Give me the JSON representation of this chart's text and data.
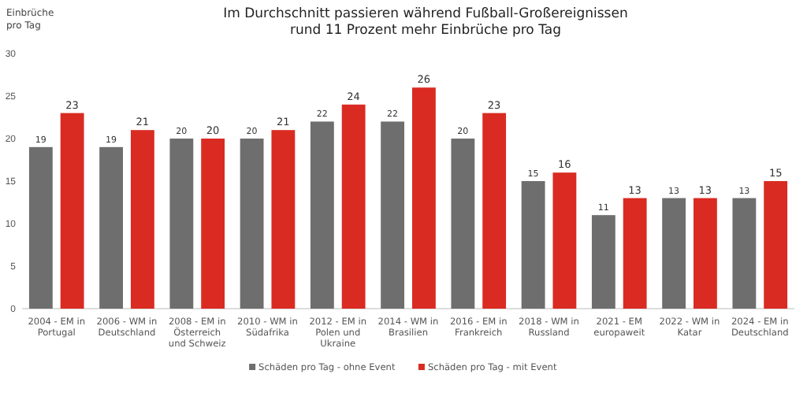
{
  "chart_data": {
    "type": "bar",
    "title": "Im Durchschnitt passieren während Fußball-Großereignissen rund 11 Prozent mehr Einbrüche pro Tag",
    "ylabel": "Einbrüche pro Tag",
    "categories": [
      "2004 - EM in Portugal",
      "2006 - WM in Deutschland",
      "2008 - EM in Österreich und Schweiz",
      "2010 - WM in Südafrika",
      "2012 - EM in Polen und Ukraine",
      "2014 - WM in Brasilien",
      "2016 - EM in Frankreich",
      "2018 - WM in Russland",
      "2021 - EM europaweit",
      "2022 - WM in Katar",
      "2024 - EM in Deutschland"
    ],
    "series": [
      {
        "name": "Schäden pro Tag - ohne Event",
        "color": "#6e6e6e",
        "values": [
          19,
          19,
          20,
          20,
          22,
          22,
          20,
          15,
          11,
          13,
          13
        ]
      },
      {
        "name": "Schäden pro Tag - mit Event",
        "color": "#d92b22",
        "values": [
          23,
          21,
          20,
          21,
          24,
          26,
          23,
          16,
          13,
          13,
          15
        ]
      }
    ],
    "ylim": [
      0,
      30
    ],
    "yticks": [
      0,
      5,
      10,
      15,
      20,
      25,
      30
    ],
    "grid": false,
    "legend": "bottom",
    "data_labels": true
  }
}
